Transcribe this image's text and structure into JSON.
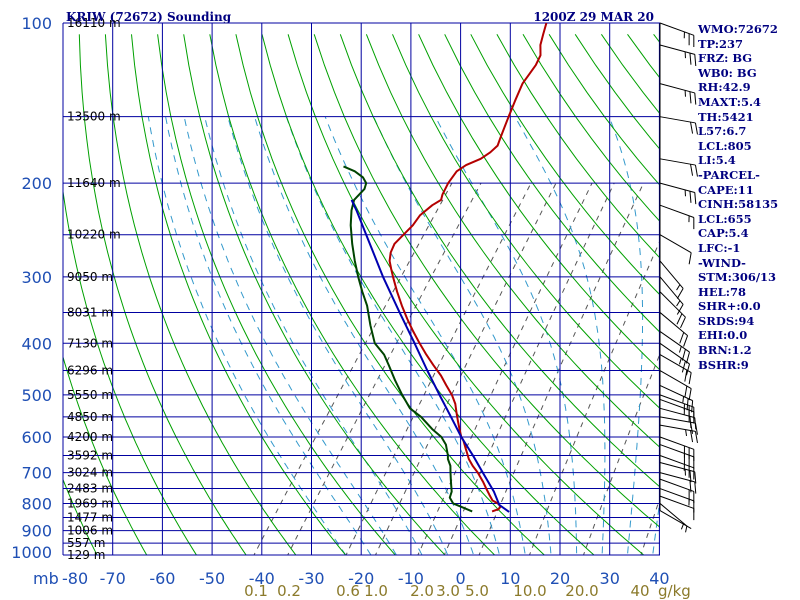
{
  "header": {
    "left": "KRIW (72672) Sounding",
    "right": "1200Z 29 MAR 20"
  },
  "colors": {
    "temperature": "#b40000",
    "dewpoint": "#004400",
    "parcel": "#0000b0",
    "isobar": "#0000a0",
    "isotherm": "#0000a0",
    "dry_adiabat": "#00a000",
    "moist_adiabat": "#3399cc",
    "mixing_ratio": "#555555",
    "wind_barb": "#000000",
    "index_text": "#000080",
    "pressure_label": "#1f4fb4",
    "mixing_label": "#8b7a2b"
  },
  "indices": [
    "WMO:72672",
    "TP:237",
    "FRZ: BG",
    "WB0: BG",
    "RH:42.9",
    "MAXT:5.4",
    "TH:5421",
    "L57:6.7",
    "LCL:805",
    "LI:5.4",
    "-PARCEL-",
    "CAPE:11",
    "CINH:58135",
    "LCL:655",
    "CAP:5.4",
    "LFC:-1",
    "-WIND-",
    "STM:306/13",
    "HEL:78",
    "SHR+:0.0",
    "SRDS:94",
    "EHI:0.0",
    "BRN:1.2",
    "BSHR:9"
  ],
  "chart_data": {
    "type": "line",
    "diagram": "skew-T log-P",
    "x_axis": {
      "quantity": "temperature",
      "unit": "C",
      "ticks": [
        "-80",
        "-70",
        "-60",
        "-50",
        "-40",
        "-30",
        "-20",
        "-10",
        "0",
        "10",
        "20",
        "30",
        "40"
      ],
      "range": [
        -80,
        40
      ]
    },
    "y_axis": {
      "quantity": "pressure",
      "unit": "mb",
      "unit_label": "mb",
      "scale": "log",
      "range": [
        1000,
        100
      ],
      "ticks": [
        "100",
        "200",
        "300",
        "400",
        "500",
        "600",
        "700",
        "800",
        "900",
        "1000"
      ]
    },
    "height_labels": [
      {
        "p": 100,
        "label": "16110 m"
      },
      {
        "p": 150,
        "label": "13500 m"
      },
      {
        "p": 200,
        "label": "11640 m"
      },
      {
        "p": 250,
        "label": "10220 m"
      },
      {
        "p": 300,
        "label": "9050 m"
      },
      {
        "p": 350,
        "label": "8031 m"
      },
      {
        "p": 400,
        "label": "7130 m"
      },
      {
        "p": 450,
        "label": "6296 m"
      },
      {
        "p": 500,
        "label": "5550 m"
      },
      {
        "p": 550,
        "label": "4850 m"
      },
      {
        "p": 600,
        "label": "4200 m"
      },
      {
        "p": 650,
        "label": "3592 m"
      },
      {
        "p": 700,
        "label": "3024 m"
      },
      {
        "p": 750,
        "label": "2483 m"
      },
      {
        "p": 800,
        "label": "1969 m"
      },
      {
        "p": 850,
        "label": "1477 m"
      },
      {
        "p": 900,
        "label": "1006 m"
      },
      {
        "p": 950,
        "label": "557 m"
      },
      {
        "p": 1000,
        "label": "129 m"
      }
    ],
    "mixing_ratio_labels": [
      "0.1",
      "0.2",
      "0.6",
      "1.0",
      "2.0",
      "3.0",
      "5.0",
      "10.0",
      "20.0",
      "40"
    ],
    "mixing_ratio_unit": "g/kg",
    "mixing_ratio_values": [
      0.1,
      0.2,
      0.6,
      1.0,
      2.0,
      3.0,
      5.0,
      10.0,
      20.0,
      40.0
    ],
    "series": [
      {
        "key": "temperature",
        "points": [
          [
            828,
            0.0
          ],
          [
            820,
            1.0
          ],
          [
            810,
            1.0
          ],
          [
            800,
            0.0
          ],
          [
            790,
            -1.5
          ],
          [
            770,
            -3.0
          ],
          [
            750,
            -4.5
          ],
          [
            730,
            -6.0
          ],
          [
            700,
            -8.5
          ],
          [
            680,
            -10.5
          ],
          [
            660,
            -12.3
          ],
          [
            650,
            -13.0
          ],
          [
            630,
            -14.5
          ],
          [
            610,
            -16.0
          ],
          [
            600,
            -17.0
          ],
          [
            580,
            -18.5
          ],
          [
            560,
            -20.0
          ],
          [
            540,
            -21.5
          ],
          [
            520,
            -23.0
          ],
          [
            500,
            -25.0
          ],
          [
            480,
            -27.5
          ],
          [
            460,
            -30.0
          ],
          [
            440,
            -33.0
          ],
          [
            420,
            -36.0
          ],
          [
            400,
            -39.0
          ],
          [
            380,
            -42.0
          ],
          [
            360,
            -45.0
          ],
          [
            340,
            -48.0
          ],
          [
            320,
            -51.0
          ],
          [
            300,
            -54.0
          ],
          [
            290,
            -55.5
          ],
          [
            280,
            -57.0
          ],
          [
            270,
            -58.0
          ],
          [
            260,
            -58.5
          ],
          [
            250,
            -58.0
          ],
          [
            240,
            -57.5
          ],
          [
            230,
            -57.5
          ],
          [
            220,
            -56.5
          ],
          [
            215,
            -55.5
          ],
          [
            210,
            -56.0
          ],
          [
            200,
            -56.5
          ],
          [
            190,
            -56.5
          ],
          [
            185,
            -55.5
          ],
          [
            180,
            -53.5
          ],
          [
            175,
            -52.5
          ],
          [
            170,
            -52.0
          ],
          [
            165,
            -52.5
          ],
          [
            160,
            -53.0
          ],
          [
            150,
            -54.0
          ],
          [
            140,
            -55.0
          ],
          [
            130,
            -56.0
          ],
          [
            125,
            -56.0
          ],
          [
            120,
            -56.0
          ],
          [
            115,
            -56.5
          ],
          [
            110,
            -58.0
          ],
          [
            105,
            -59.0
          ],
          [
            100,
            -60.0
          ]
        ]
      },
      {
        "key": "dewpoint",
        "points": [
          [
            828,
            -4.0
          ],
          [
            800,
            -9.0
          ],
          [
            780,
            -10.5
          ],
          [
            760,
            -11.0
          ],
          [
            740,
            -12.0
          ],
          [
            720,
            -13.0
          ],
          [
            700,
            -14.0
          ],
          [
            680,
            -15.0
          ],
          [
            660,
            -16.5
          ],
          [
            650,
            -17.0
          ],
          [
            620,
            -19.0
          ],
          [
            600,
            -21.0
          ],
          [
            580,
            -24.0
          ],
          [
            550,
            -28.0
          ],
          [
            530,
            -31.5
          ],
          [
            500,
            -35.0
          ],
          [
            470,
            -38.5
          ],
          [
            440,
            -42.0
          ],
          [
            420,
            -44.5
          ],
          [
            400,
            -48.0
          ],
          [
            370,
            -51.5
          ],
          [
            340,
            -55.0
          ],
          [
            320,
            -58.0
          ],
          [
            300,
            -61.0
          ],
          [
            280,
            -64.0
          ],
          [
            260,
            -67.0
          ],
          [
            240,
            -70.0
          ],
          [
            225,
            -72.0
          ],
          [
            215,
            -73.0
          ],
          [
            205,
            -72.5
          ],
          [
            200,
            -73.0
          ],
          [
            195,
            -74.5
          ],
          [
            190,
            -77.0
          ],
          [
            186,
            -80.0
          ]
        ]
      },
      {
        "key": "parcel",
        "points": [
          [
            830,
            3.5
          ],
          [
            805,
            0.5
          ],
          [
            760,
            -2.5
          ],
          [
            700,
            -7.5
          ],
          [
            655,
            -11.5
          ],
          [
            600,
            -17.0
          ],
          [
            550,
            -22.0
          ],
          [
            500,
            -27.5
          ],
          [
            450,
            -33.5
          ],
          [
            400,
            -40.0
          ],
          [
            350,
            -47.5
          ],
          [
            300,
            -56.0
          ],
          [
            250,
            -65.5
          ],
          [
            225,
            -71.0
          ],
          [
            215,
            -73.5
          ]
        ]
      }
    ],
    "wind_barbs": [
      {
        "p": 825,
        "dir": 300,
        "spd": 5
      },
      {
        "p": 800,
        "dir": 310,
        "spd": 5
      },
      {
        "p": 775,
        "dir": 290,
        "spd": 10
      },
      {
        "p": 750,
        "dir": 290,
        "spd": 15
      },
      {
        "p": 720,
        "dir": 290,
        "spd": 20
      },
      {
        "p": 700,
        "dir": 285,
        "spd": 20
      },
      {
        "p": 670,
        "dir": 285,
        "spd": 25
      },
      {
        "p": 650,
        "dir": 290,
        "spd": 25
      },
      {
        "p": 620,
        "dir": 290,
        "spd": 30
      },
      {
        "p": 600,
        "dir": 290,
        "spd": 30
      },
      {
        "p": 570,
        "dir": 280,
        "spd": 25
      },
      {
        "p": 550,
        "dir": 280,
        "spd": 20
      },
      {
        "p": 530,
        "dir": 285,
        "spd": 20
      },
      {
        "p": 510,
        "dir": 290,
        "spd": 25
      },
      {
        "p": 500,
        "dir": 290,
        "spd": 25
      },
      {
        "p": 480,
        "dir": 295,
        "spd": 25
      },
      {
        "p": 450,
        "dir": 300,
        "spd": 20
      },
      {
        "p": 420,
        "dir": 300,
        "spd": 20
      },
      {
        "p": 400,
        "dir": 305,
        "spd": 25
      },
      {
        "p": 380,
        "dir": 305,
        "spd": 25
      },
      {
        "p": 350,
        "dir": 310,
        "spd": 20
      },
      {
        "p": 320,
        "dir": 315,
        "spd": 20
      },
      {
        "p": 300,
        "dir": 320,
        "spd": 15
      },
      {
        "p": 280,
        "dir": 320,
        "spd": 15
      },
      {
        "p": 250,
        "dir": 300,
        "spd": 10
      },
      {
        "p": 220,
        "dir": 290,
        "spd": 15
      },
      {
        "p": 200,
        "dir": 285,
        "spd": 25
      },
      {
        "p": 180,
        "dir": 280,
        "spd": 20
      },
      {
        "p": 150,
        "dir": 280,
        "spd": 20
      },
      {
        "p": 130,
        "dir": 285,
        "spd": 25
      },
      {
        "p": 110,
        "dir": 285,
        "spd": 25
      },
      {
        "p": 100,
        "dir": 290,
        "spd": 25
      }
    ]
  }
}
